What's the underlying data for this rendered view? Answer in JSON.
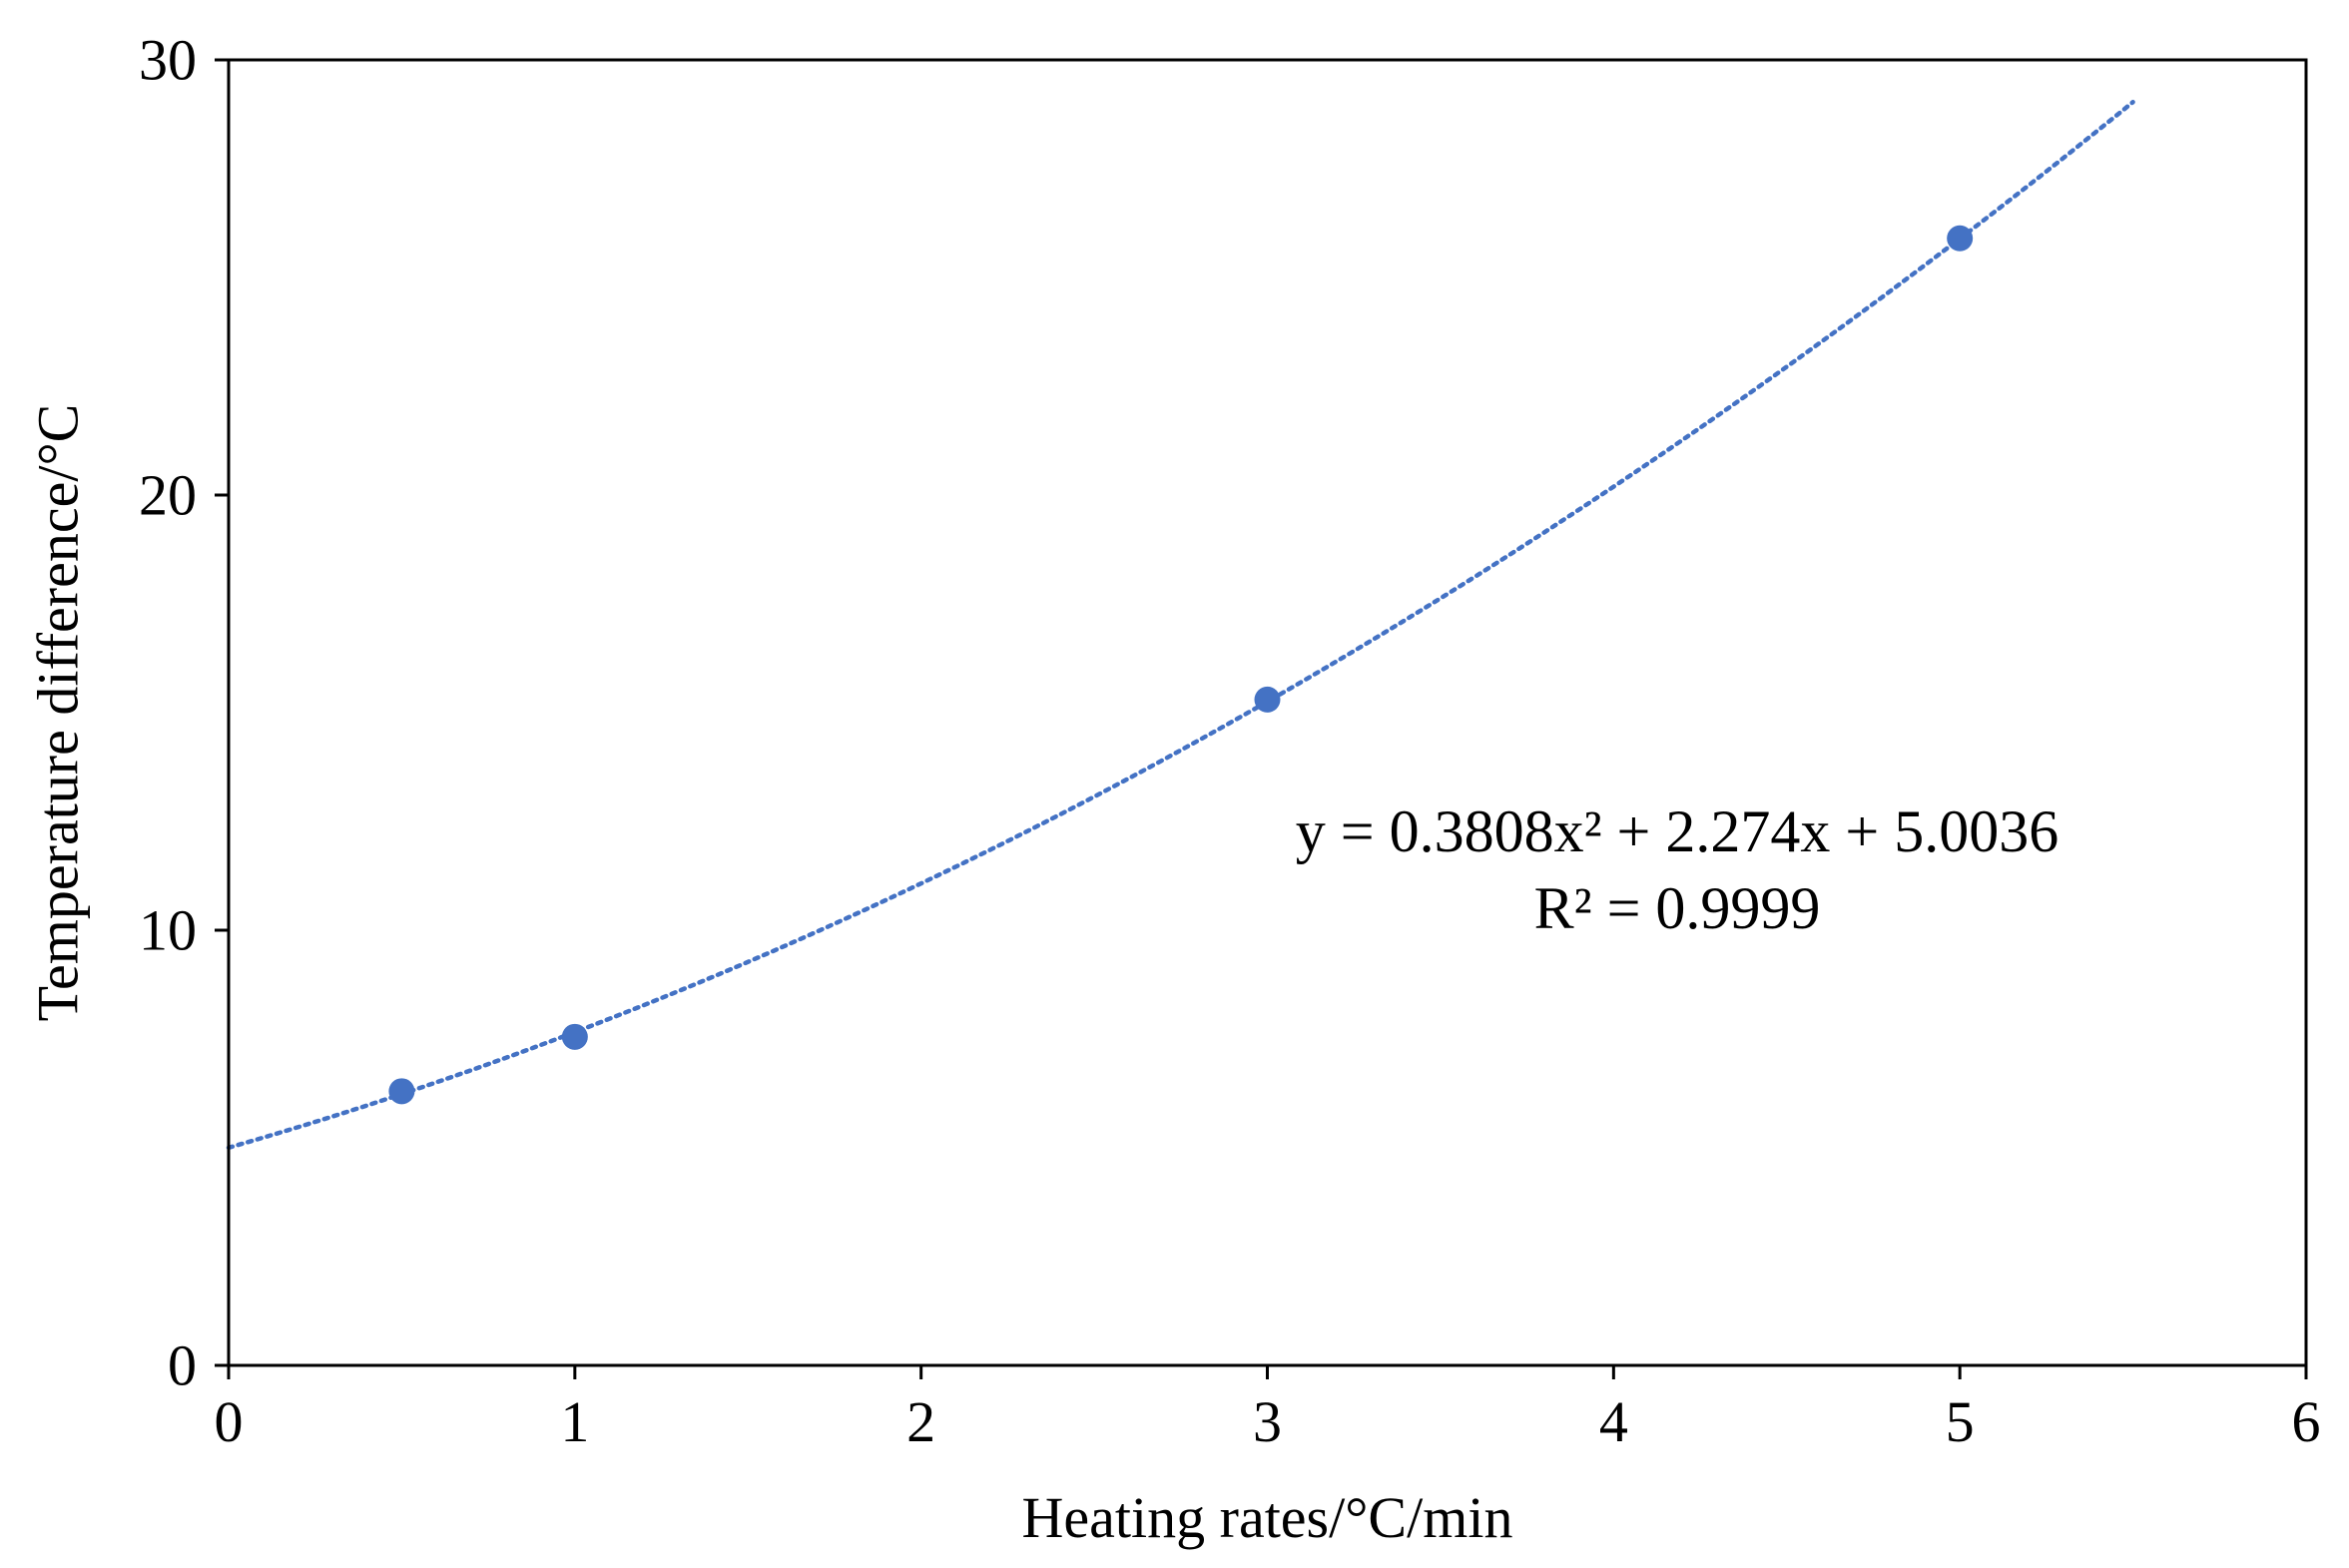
{
  "chart_data": {
    "type": "scatter",
    "title": "",
    "xlabel": "Heating rates/°C/min",
    "ylabel": "Temperature difference/°C",
    "xlim": [
      0,
      6
    ],
    "ylim": [
      0,
      30
    ],
    "x_ticks": [
      "0",
      "1",
      "2",
      "3",
      "4",
      "5",
      "6"
    ],
    "y_ticks": [
      "0",
      "10",
      "20",
      "30"
    ],
    "grid": false,
    "legend": "none",
    "series": [
      {
        "x": [
          0.5,
          1,
          3,
          5
        ],
        "y": [
          6.3,
          7.55,
          15.3,
          25.9
        ],
        "color": "#4472C4"
      }
    ],
    "trendline": {
      "kind": "polynomial",
      "coefficients": [
        0.3808,
        2.274,
        5.0036
      ],
      "x_range": [
        0,
        5.5
      ],
      "style": "dotted",
      "color": "#4472C4",
      "equation": "y = 0.3808x² + 2.274x + 5.0036",
      "r_squared": "R² = 0.9999"
    }
  }
}
